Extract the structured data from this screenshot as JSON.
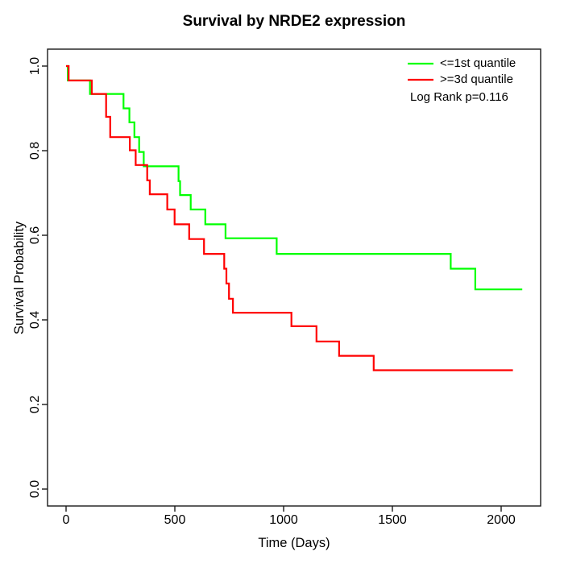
{
  "title": "Survival by NRDE2 expression",
  "axes": {
    "x_label": "Time (Days)",
    "y_label": "Survival Probability"
  },
  "legend": {
    "items": [
      {
        "label": "<=1st quantile",
        "color": "#00FF00"
      },
      {
        "label": ">=3d quantile",
        "color": "#FF0000"
      }
    ],
    "annotation": "Log Rank p=0.116"
  },
  "chart_data": {
    "type": "line",
    "subtype": "kaplan_meier_step",
    "title": "Survival by NRDE2 expression",
    "xlabel": "Time (Days)",
    "ylabel": "Survival Probability",
    "xlim": [
      -84,
      2184
    ],
    "ylim": [
      -0.04,
      1.04
    ],
    "xticks": [
      0,
      500,
      1000,
      1500,
      2000
    ],
    "yticks": [
      0.0,
      0.2,
      0.4,
      0.6,
      0.8,
      1.0
    ],
    "grid": false,
    "legend_position": "top-right",
    "annotation": "Log Rank p=0.116",
    "series": [
      {
        "name": "<=1st quantile",
        "color": "#00FF00",
        "step": true,
        "points": [
          [
            0,
            1.0
          ],
          [
            8,
            0.966
          ],
          [
            110,
            0.934
          ],
          [
            264,
            0.9
          ],
          [
            291,
            0.867
          ],
          [
            314,
            0.832
          ],
          [
            336,
            0.797
          ],
          [
            357,
            0.763
          ],
          [
            517,
            0.728
          ],
          [
            524,
            0.695
          ],
          [
            573,
            0.661
          ],
          [
            640,
            0.626
          ],
          [
            733,
            0.593
          ],
          [
            968,
            0.556
          ],
          [
            1768,
            0.521
          ],
          [
            1881,
            0.472
          ],
          [
            2097,
            0.472
          ]
        ]
      },
      {
        "name": ">=3d quantile",
        "color": "#FF0000",
        "step": true,
        "points": [
          [
            0,
            1.0
          ],
          [
            12,
            0.966
          ],
          [
            118,
            0.934
          ],
          [
            184,
            0.88
          ],
          [
            203,
            0.832
          ],
          [
            293,
            0.801
          ],
          [
            320,
            0.766
          ],
          [
            373,
            0.73
          ],
          [
            385,
            0.697
          ],
          [
            465,
            0.661
          ],
          [
            499,
            0.626
          ],
          [
            566,
            0.591
          ],
          [
            634,
            0.556
          ],
          [
            727,
            0.521
          ],
          [
            737,
            0.486
          ],
          [
            749,
            0.45
          ],
          [
            767,
            0.417
          ],
          [
            1036,
            0.385
          ],
          [
            1151,
            0.349
          ],
          [
            1255,
            0.315
          ],
          [
            1414,
            0.281
          ],
          [
            2054,
            0.281
          ]
        ]
      }
    ]
  }
}
